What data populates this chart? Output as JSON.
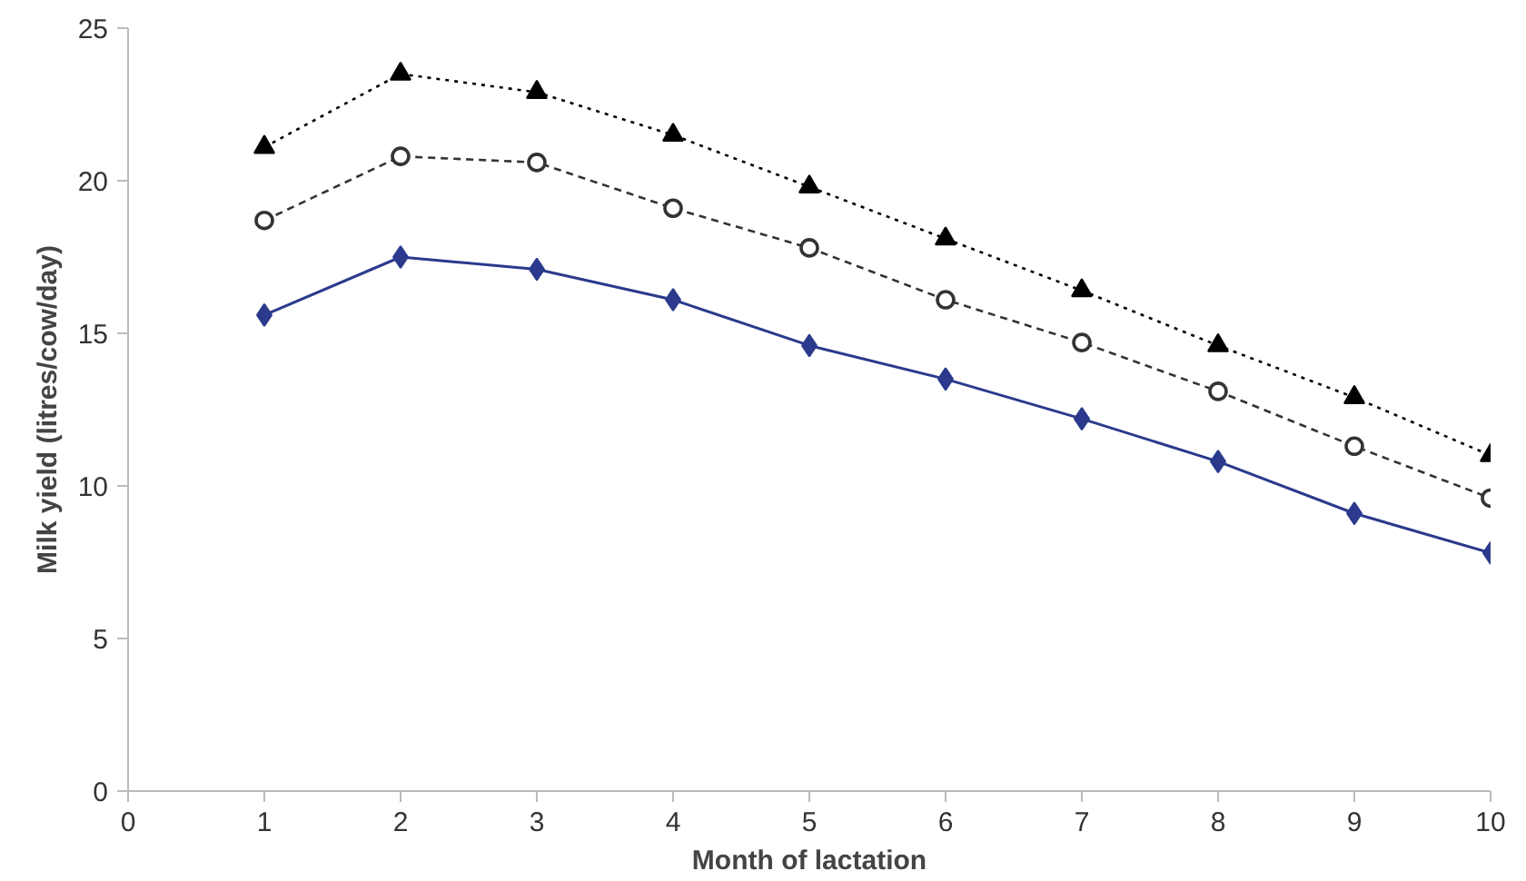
{
  "chart_data": {
    "type": "line",
    "xlabel": "Month of lactation",
    "ylabel": "Milk yield (litres/cow/day)",
    "x": [
      1,
      2,
      3,
      4,
      5,
      6,
      7,
      8,
      9,
      10
    ],
    "xlim": [
      0,
      10
    ],
    "xticks": [
      0,
      1,
      2,
      3,
      4,
      5,
      6,
      7,
      8,
      9,
      10
    ],
    "ylim": [
      0,
      25
    ],
    "yticks": [
      0,
      5,
      10,
      15,
      20,
      25
    ],
    "grid": false,
    "series": [
      {
        "color": "#2b3a8c",
        "marker": "diamond",
        "line_style": "solid",
        "values": [
          15.6,
          17.5,
          17.1,
          16.1,
          14.6,
          13.5,
          12.2,
          10.8,
          9.1,
          7.8
        ]
      },
      {
        "color": "#333333",
        "marker": "circle",
        "line_style": "dashed",
        "values": [
          18.7,
          20.8,
          20.6,
          19.1,
          17.8,
          16.1,
          14.7,
          13.1,
          11.3,
          9.6
        ]
      },
      {
        "color": "#000000",
        "marker": "triangle",
        "line_style": "dotted",
        "values": [
          21.1,
          23.5,
          22.9,
          21.5,
          19.8,
          18.1,
          16.4,
          14.6,
          12.9,
          11.0
        ]
      }
    ]
  }
}
